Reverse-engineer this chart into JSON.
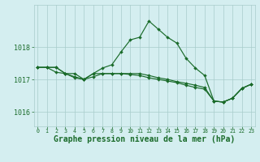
{
  "background_color": "#d4eef0",
  "grid_color": "#a8cccc",
  "line_color": "#1a6b2a",
  "xlabel": "Graphe pression niveau de la mer (hPa)",
  "xlabel_fontsize": 7,
  "xticks": [
    0,
    1,
    2,
    3,
    4,
    5,
    6,
    7,
    8,
    9,
    10,
    11,
    12,
    13,
    14,
    15,
    16,
    17,
    18,
    19,
    20,
    21,
    22,
    23
  ],
  "ytick_vals": [
    1016,
    1017,
    1018
  ],
  "ylim": [
    1015.55,
    1019.3
  ],
  "xlim": [
    -0.4,
    23.4
  ],
  "s1_x": [
    0,
    1,
    2,
    3,
    4,
    5,
    6,
    7,
    8,
    9,
    10,
    11,
    12,
    13,
    14,
    15,
    16,
    17,
    18,
    19,
    20,
    21,
    22,
    23
  ],
  "s1_y": [
    1017.37,
    1017.37,
    1017.37,
    1017.18,
    1017.05,
    1017.0,
    1017.18,
    1017.35,
    1017.45,
    1017.85,
    1018.22,
    1018.3,
    1018.8,
    1018.55,
    1018.3,
    1018.12,
    1017.65,
    1017.35,
    1017.12,
    1016.33,
    1016.3,
    1016.42,
    1016.72,
    1016.85
  ],
  "s2_x": [
    0,
    1,
    2,
    3,
    4,
    5,
    6,
    7,
    8,
    9,
    10,
    11,
    12,
    13,
    14,
    15,
    16,
    17,
    18,
    19,
    20,
    21,
    22,
    23
  ],
  "s2_y": [
    1017.37,
    1017.37,
    1017.37,
    1017.18,
    1017.18,
    1017.0,
    1017.18,
    1017.18,
    1017.18,
    1017.18,
    1017.18,
    1017.18,
    1017.12,
    1017.05,
    1017.0,
    1016.93,
    1016.88,
    1016.82,
    1016.75,
    1016.33,
    1016.3,
    1016.42,
    1016.72,
    1016.85
  ],
  "s3_x": [
    0,
    1,
    2,
    3,
    4,
    5,
    6,
    7,
    8,
    9,
    10,
    11,
    12,
    13,
    14,
    15,
    16,
    17,
    18,
    19,
    20,
    21,
    22,
    23
  ],
  "s3_y": [
    1017.37,
    1017.37,
    1017.22,
    1017.18,
    1017.08,
    1017.0,
    1017.08,
    1017.18,
    1017.18,
    1017.18,
    1017.15,
    1017.12,
    1017.05,
    1017.0,
    1016.95,
    1016.9,
    1016.82,
    1016.75,
    1016.7,
    1016.33,
    1016.3,
    1016.42,
    1016.72,
    1016.85
  ]
}
